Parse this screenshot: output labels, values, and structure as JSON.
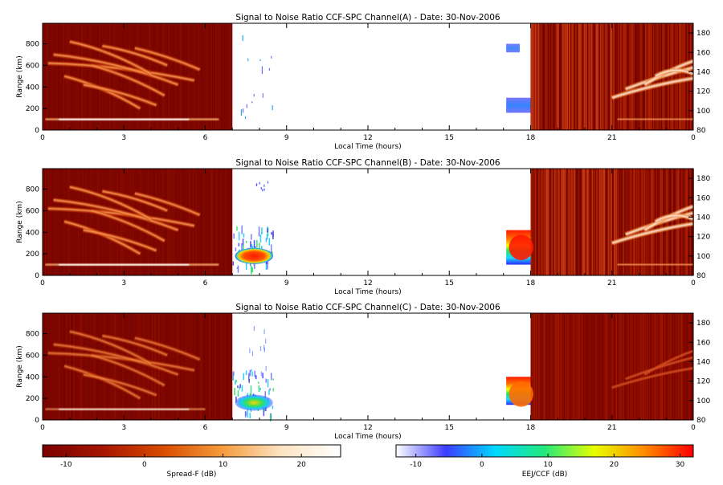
{
  "chart_data": [
    {
      "type": "heatmap",
      "title": "Signal to Noise Ratio CCF-SPC Channel(A) - Date: 30-Nov-2006",
      "xlabel": "Local Time (hours)",
      "ylabel": "Range (km)",
      "x_ticks": [
        "0",
        "3",
        "6",
        "9",
        "12",
        "15",
        "18",
        "21",
        "0"
      ],
      "y_ticks": [
        0,
        200,
        400,
        600,
        800
      ],
      "y2_ticks": [
        80,
        100,
        120,
        140,
        160,
        180
      ],
      "xlim": [
        0,
        24
      ],
      "ylim": [
        0,
        990
      ],
      "y2lim": [
        80,
        190
      ],
      "spread_f_blocks": [
        [
          0,
          7
        ]
      ],
      "ccf_blocks": [
        [
          17.1,
          18
        ]
      ],
      "eej_blocks": [
        [
          18,
          24
        ]
      ],
      "bands": [
        {
          "x0": 0.1,
          "x1": 6.5,
          "r0": 90,
          "r1": 110
        },
        {
          "x0": 0.2,
          "x1": 4.5,
          "r0": 250,
          "r1": 850
        },
        {
          "x0": 18.0,
          "x1": 21.2,
          "r0": 60,
          "r1": 980
        },
        {
          "x0": 21.0,
          "x1": 24.0,
          "r0": 300,
          "r1": 650
        },
        {
          "x0": 21.0,
          "x1": 24.0,
          "r0": 80,
          "r1": 110
        },
        {
          "x0": 17.1,
          "x1": 17.6,
          "r0": 720,
          "r1": 800
        },
        {
          "x0": 17.1,
          "x1": 18.0,
          "r0": 160,
          "r1": 300
        }
      ]
    },
    {
      "type": "heatmap",
      "title": "Signal to Noise Ratio CCF-SPC Channel(B) - Date: 30-Nov-2006",
      "xlabel": "Local Time (hours)",
      "ylabel": "Range (km)",
      "x_ticks": [
        "0",
        "3",
        "6",
        "9",
        "12",
        "15",
        "18",
        "21",
        "0"
      ],
      "y_ticks": [
        0,
        200,
        400,
        600,
        800
      ],
      "y2_ticks": [
        80,
        100,
        120,
        140,
        160,
        180
      ],
      "xlim": [
        0,
        24
      ],
      "ylim": [
        0,
        990
      ],
      "y2lim": [
        80,
        190
      ],
      "spread_f_blocks": [
        [
          0,
          7
        ]
      ],
      "ccf_blocks": [
        [
          7.0,
          8.5
        ],
        [
          17.1,
          18
        ]
      ],
      "eej_blocks": [
        [
          18,
          24
        ]
      ],
      "bands": [
        {
          "x0": 0.1,
          "x1": 6.5,
          "r0": 90,
          "r1": 110
        },
        {
          "x0": 0.2,
          "x1": 4.5,
          "r0": 250,
          "r1": 850
        },
        {
          "x0": 18.0,
          "x1": 21.2,
          "r0": 60,
          "r1": 980
        },
        {
          "x0": 21.0,
          "x1": 24.0,
          "r0": 300,
          "r1": 650
        },
        {
          "x0": 7.0,
          "x1": 8.5,
          "r0": 100,
          "r1": 450
        },
        {
          "x0": 17.1,
          "x1": 18.0,
          "r0": 100,
          "r1": 420
        }
      ]
    },
    {
      "type": "heatmap",
      "title": "Signal to Noise Ratio CCF-SPC Channel(C) - Date: 30-Nov-2006",
      "xlabel": "Local Time (hours)",
      "ylabel": "Range (km)",
      "x_ticks": [
        "0",
        "3",
        "6",
        "9",
        "12",
        "15",
        "18",
        "21",
        "0"
      ],
      "y_ticks": [
        0,
        200,
        400,
        600,
        800
      ],
      "y2_ticks": [
        80,
        100,
        120,
        140,
        160,
        180
      ],
      "xlim": [
        0,
        24
      ],
      "ylim": [
        0,
        990
      ],
      "y2lim": [
        80,
        190
      ],
      "spread_f_blocks": [
        [
          0,
          7
        ]
      ],
      "ccf_blocks": [
        [
          7.0,
          8.5
        ],
        [
          17.1,
          18
        ]
      ],
      "eej_blocks": [
        [
          18,
          24
        ]
      ],
      "bands": [
        {
          "x0": 0.1,
          "x1": 6.0,
          "r0": 90,
          "r1": 110
        },
        {
          "x0": 0.2,
          "x1": 4.5,
          "r0": 250,
          "r1": 800
        },
        {
          "x0": 21.0,
          "x1": 24.0,
          "r0": 300,
          "r1": 600
        },
        {
          "x0": 7.0,
          "x1": 8.5,
          "r0": 100,
          "r1": 900
        },
        {
          "x0": 17.1,
          "x1": 18.0,
          "r0": 140,
          "r1": 400
        }
      ]
    }
  ],
  "colorbars": [
    {
      "label": "Spread-F (dB)",
      "range": [
        -13,
        25
      ],
      "ticks": [
        -10,
        0,
        10,
        20
      ],
      "colors": [
        "#7a0000",
        "#a51500",
        "#d84a00",
        "#f59a3a",
        "#fde3c2",
        "#ffffff"
      ]
    },
    {
      "label": "EEJ/CCF (dB)",
      "range": [
        -13,
        32
      ],
      "ticks": [
        -10,
        0,
        10,
        20,
        30
      ],
      "colors": [
        "#ffffff",
        "#3c3cff",
        "#00d8ff",
        "#23e97a",
        "#e8ff00",
        "#ff8c00",
        "#ff0000"
      ]
    }
  ]
}
